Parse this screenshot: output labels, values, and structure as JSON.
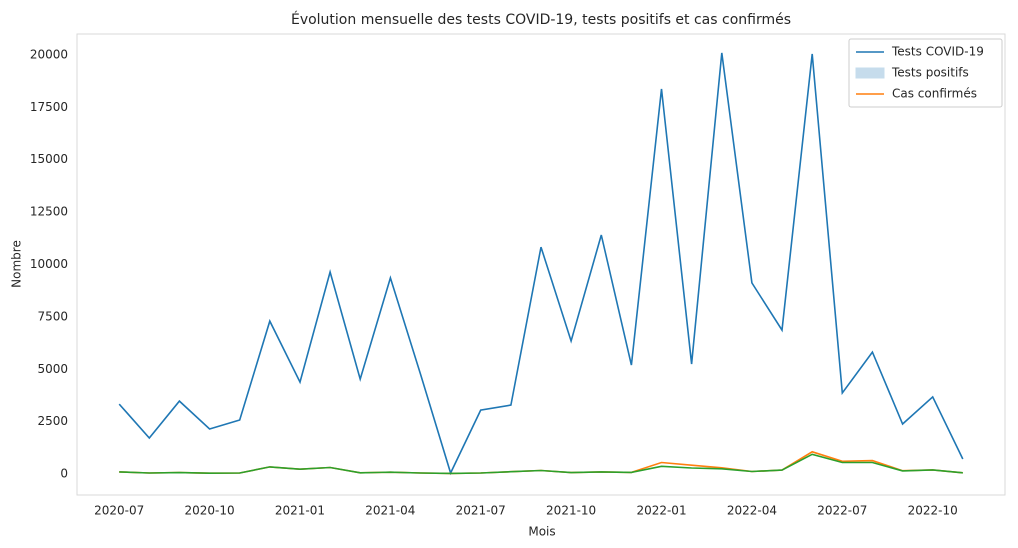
{
  "chart_data": {
    "type": "line",
    "title": "Évolution mensuelle des tests COVID-19, tests positifs et cas confirmés",
    "xlabel": "Mois",
    "ylabel": "Nombre",
    "x": [
      "2020-07",
      "2020-08",
      "2020-09",
      "2020-10",
      "2020-11",
      "2020-12",
      "2021-01",
      "2021-02",
      "2021-03",
      "2021-04",
      "2021-05",
      "2021-06",
      "2021-07",
      "2021-08",
      "2021-09",
      "2021-10",
      "2021-11",
      "2021-12",
      "2022-01",
      "2022-02",
      "2022-03",
      "2022-04",
      "2022-05",
      "2022-06",
      "2022-07",
      "2022-08",
      "2022-09",
      "2022-10",
      "2022-11"
    ],
    "series": [
      {
        "name": "Tests COVID-19",
        "color": "#1f77b4",
        "legend": "line",
        "values": [
          3340,
          1720,
          3480,
          2150,
          2580,
          7300,
          4390,
          9640,
          4530,
          9360,
          4770,
          50,
          3050,
          3290,
          10830,
          6350,
          11410,
          5200,
          18380,
          5250,
          20100,
          9120,
          6870,
          20050,
          3870,
          5820,
          2390,
          3680,
          720
        ]
      },
      {
        "name": "Tests positifs",
        "color": "#2ca02c",
        "legend_color": "#c6dcec",
        "legend": "patch",
        "values": [
          100,
          50,
          70,
          40,
          50,
          340,
          230,
          310,
          60,
          90,
          50,
          30,
          50,
          110,
          170,
          70,
          100,
          80,
          370,
          290,
          250,
          120,
          190,
          940,
          550,
          550,
          150,
          200,
          60
        ]
      },
      {
        "name": "Cas confirmés",
        "color": "#ff7f0e",
        "legend": "line",
        "values": [
          100,
          50,
          70,
          40,
          50,
          340,
          230,
          310,
          60,
          90,
          50,
          30,
          50,
          110,
          170,
          70,
          100,
          80,
          550,
          420,
          300,
          120,
          190,
          1060,
          610,
          640,
          160,
          200,
          60
        ]
      }
    ],
    "xticks": [
      "2020-07",
      "2020-10",
      "2021-01",
      "2021-04",
      "2021-07",
      "2021-10",
      "2022-01",
      "2022-04",
      "2022-07",
      "2022-10"
    ],
    "ylim": [
      -1000,
      21000
    ],
    "yticks": [
      0,
      2500,
      5000,
      7500,
      10000,
      12500,
      15000,
      17500,
      20000
    ],
    "grid": false,
    "legend_position": "upper right"
  }
}
